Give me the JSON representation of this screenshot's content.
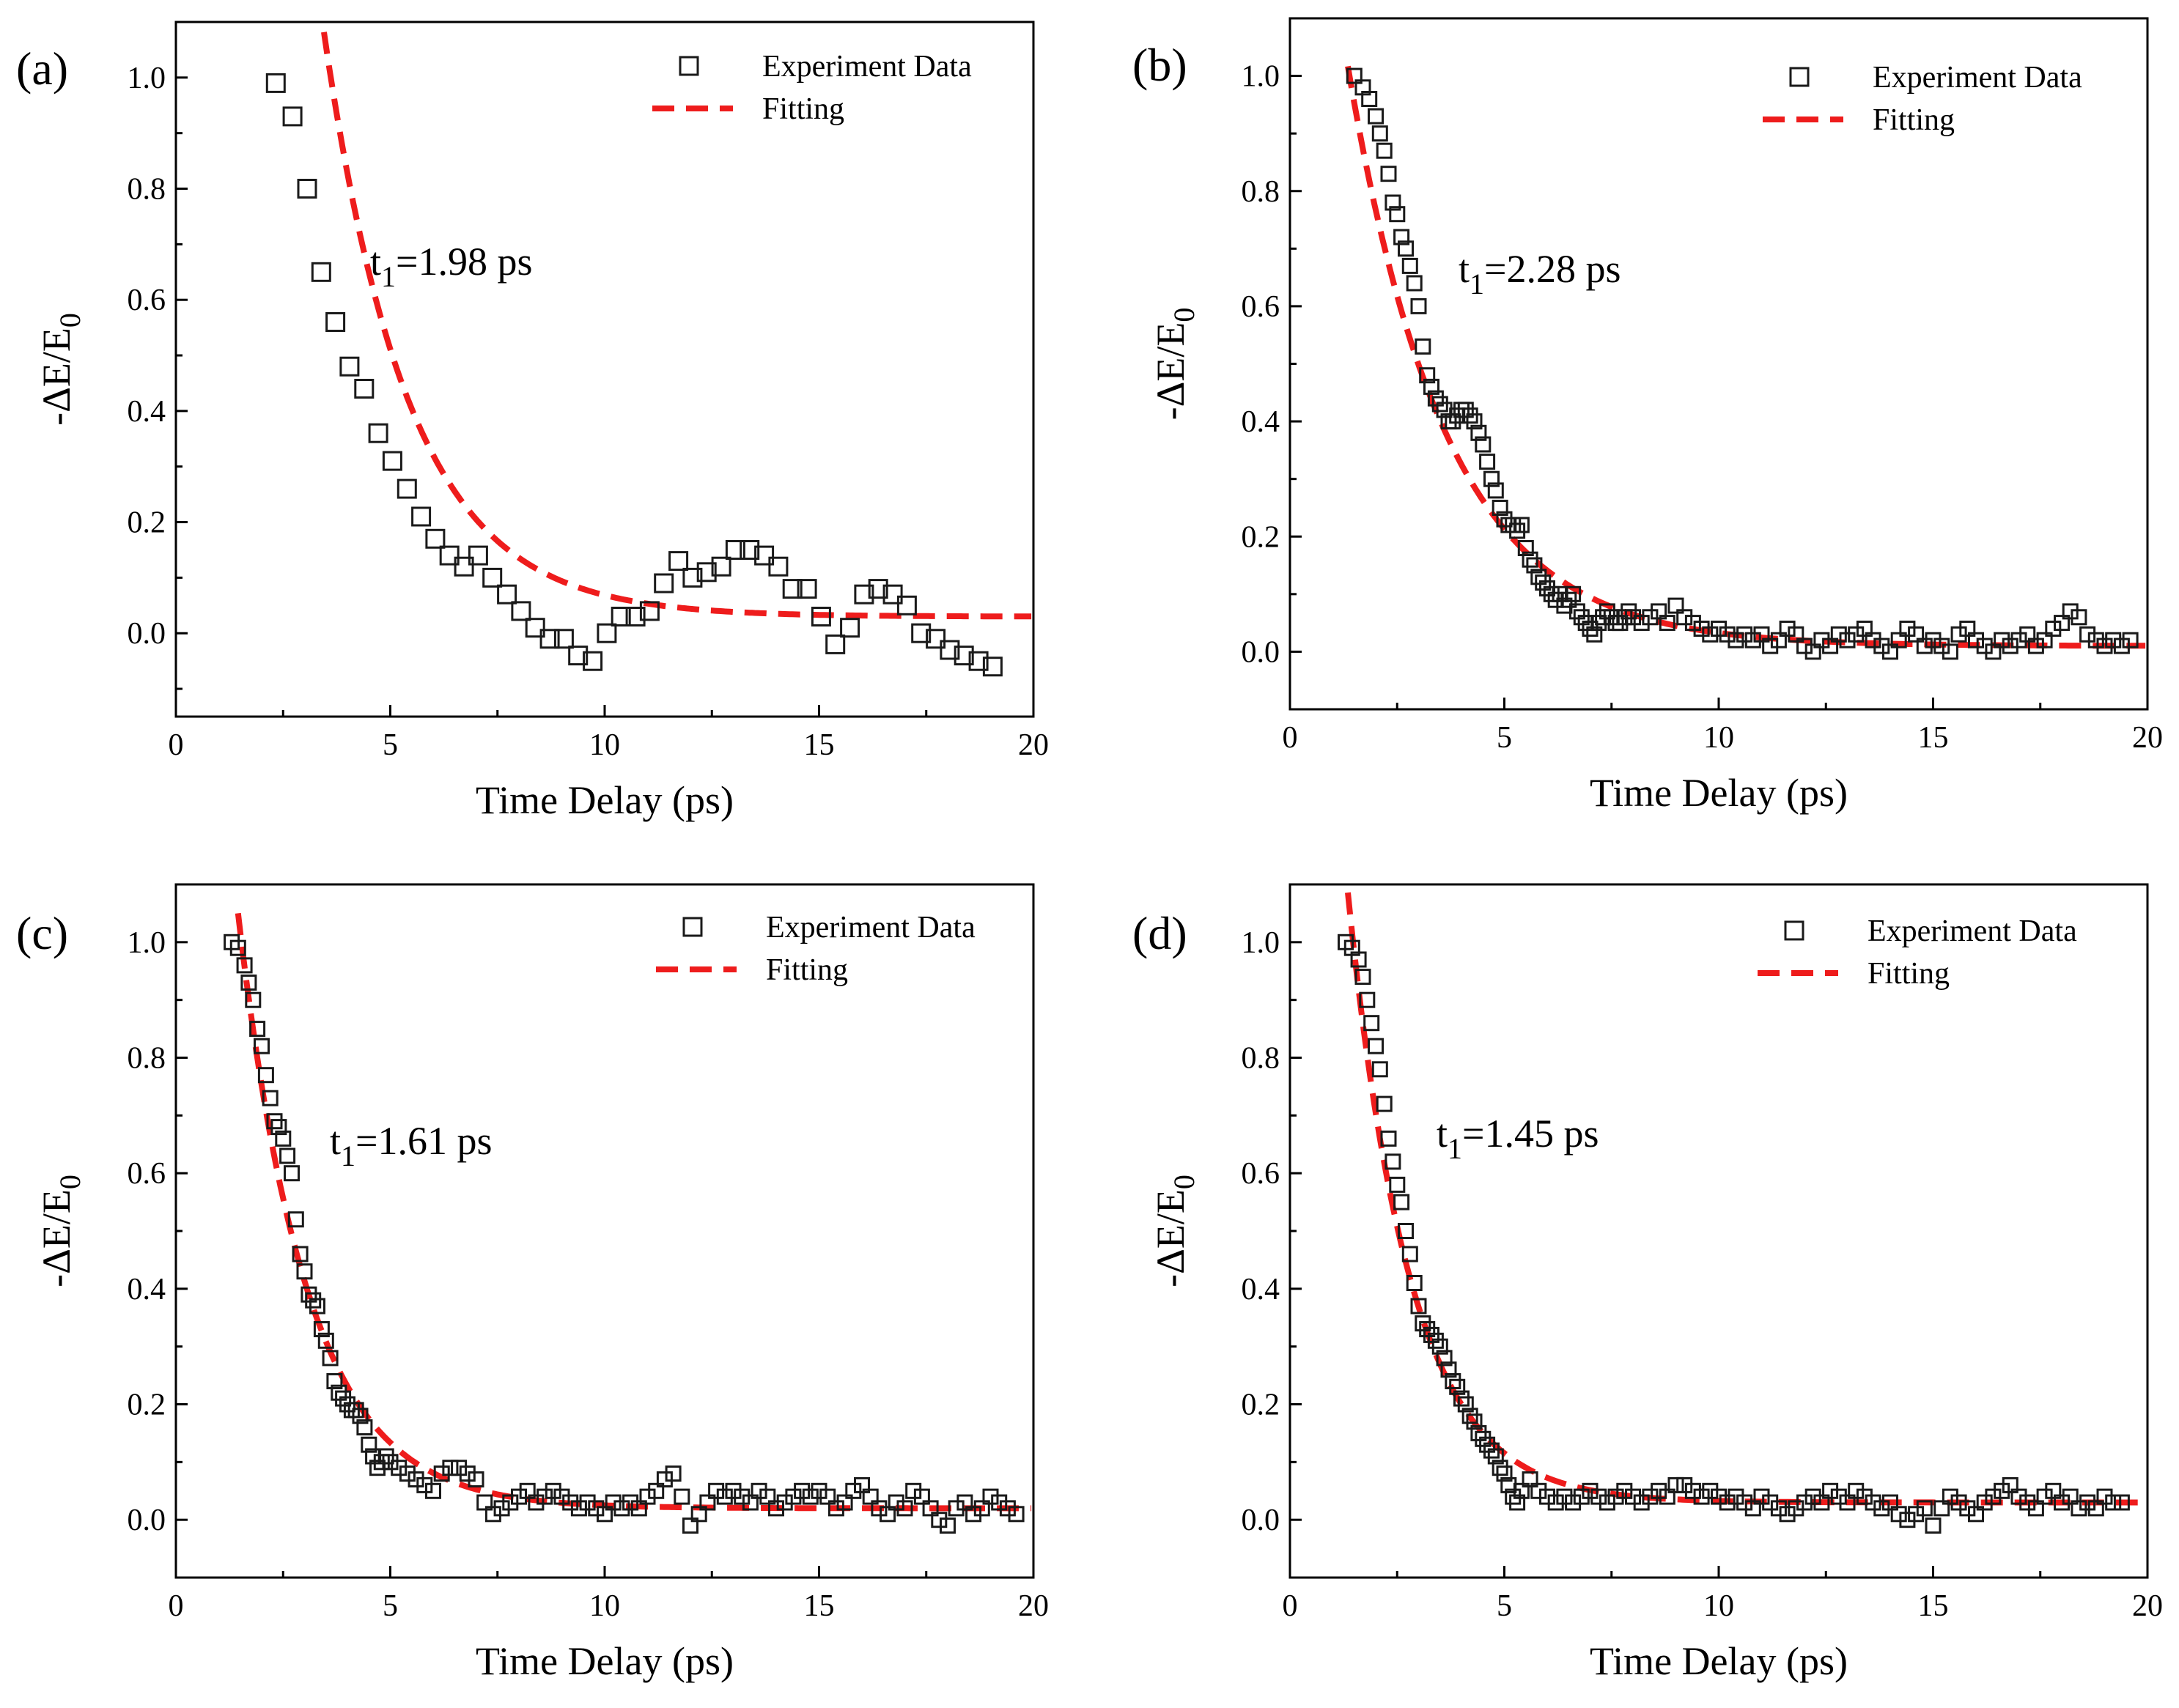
{
  "colors": {
    "marker": "#1a1a1a",
    "fit": "#ee1c1c",
    "axis": "#000000"
  },
  "chart_data": [
    {
      "panel": "(a)",
      "type": "scatter",
      "xlabel": "Time Delay (ps)",
      "ylabel": "-ΔE/E",
      "ylabel_sub": "0",
      "xlim": [
        0,
        20
      ],
      "ylim": [
        -0.15,
        1.1
      ],
      "xticks": [
        "0",
        "5",
        "10",
        "15",
        "20"
      ],
      "yticks": [
        "0.0",
        "0.2",
        "0.4",
        "0.6",
        "0.8",
        "1.0"
      ],
      "legend": {
        "data": "Experiment Data",
        "fit": "Fitting",
        "position": "top-right"
      },
      "annotation": {
        "main": "t",
        "sub": "1",
        "rest": "=1.98 ps"
      },
      "fit": {
        "A": 1.98,
        "tau": 1.98,
        "t0": 2.2,
        "C": 0.03,
        "start": 2.35
      },
      "series": [
        {
          "name": "Experiment Data",
          "x": [
            2.33,
            2.72,
            3.06,
            3.39,
            3.72,
            4.05,
            4.39,
            4.72,
            5.05,
            5.39,
            5.72,
            6.05,
            6.38,
            6.72,
            7.05,
            7.38,
            7.72,
            8.05,
            8.38,
            8.72,
            9.05,
            9.38,
            9.72,
            10.05,
            10.38,
            10.72,
            11.05,
            11.38,
            11.72,
            12.05,
            12.38,
            12.72,
            13.05,
            13.38,
            13.72,
            14.05,
            14.38,
            14.72,
            15.05,
            15.38,
            15.72,
            16.05,
            16.38,
            16.72,
            17.05,
            17.38,
            17.72,
            18.05,
            18.38,
            18.72,
            19.05
          ],
          "y": [
            0.99,
            0.93,
            0.8,
            0.65,
            0.56,
            0.48,
            0.44,
            0.36,
            0.31,
            0.26,
            0.21,
            0.17,
            0.14,
            0.12,
            0.14,
            0.1,
            0.07,
            0.04,
            0.01,
            -0.01,
            -0.01,
            -0.04,
            -0.05,
            0.0,
            0.03,
            0.03,
            0.04,
            0.09,
            0.13,
            0.1,
            0.11,
            0.12,
            0.15,
            0.15,
            0.14,
            0.12,
            0.08,
            0.08,
            0.03,
            -0.02,
            0.01,
            0.07,
            0.08,
            0.07,
            0.05,
            0.0,
            -0.01,
            -0.03,
            -0.04,
            -0.05,
            -0.06
          ]
        }
      ]
    },
    {
      "panel": "(b)",
      "type": "scatter",
      "xlabel": "Time Delay (ps)",
      "ylabel": "-ΔE/E",
      "ylabel_sub": "0",
      "xlim": [
        0,
        20
      ],
      "ylim": [
        -0.1,
        1.1
      ],
      "xticks": [
        "0",
        "5",
        "10",
        "15",
        "20"
      ],
      "yticks": [
        "0.0",
        "0.2",
        "0.4",
        "0.6",
        "0.8",
        "1.0"
      ],
      "legend": {
        "data": "Experiment Data",
        "fit": "Fitting",
        "position": "top-right"
      },
      "annotation": {
        "main": "t",
        "sub": "1",
        "rest": "=2.28 ps"
      },
      "fit": {
        "A": 0.985,
        "tau": 2.28,
        "t0": 1.4,
        "C": 0.01,
        "start": 1.35
      },
      "noise": [
        0.0,
        0.03
      ],
      "series": [
        {
          "name": "Experiment Data",
          "x": [
            1.5,
            1.7,
            1.85,
            2.0,
            2.1,
            2.2,
            2.3,
            2.4,
            2.5,
            2.6,
            2.7,
            2.8,
            2.9,
            3.0,
            3.1,
            3.2,
            3.3,
            3.4,
            3.5,
            3.6,
            3.7,
            3.8,
            3.9,
            4.0,
            4.1,
            4.2,
            4.3,
            4.4,
            4.5,
            4.6,
            4.7,
            4.8,
            4.9,
            5.0,
            5.1,
            5.2,
            5.3,
            5.4,
            5.5,
            5.6,
            5.7,
            5.8,
            5.9,
            6.0,
            6.1,
            6.2,
            6.3,
            6.4,
            6.5,
            6.6,
            6.7,
            6.8,
            6.9,
            7.0,
            7.1,
            7.2,
            7.3,
            7.4,
            7.5,
            7.6,
            7.7,
            7.8,
            7.9,
            8.0,
            8.2,
            8.4,
            8.6,
            8.8,
            9.0,
            9.2,
            9.4,
            9.6,
            9.8,
            10.0,
            10.2,
            10.4,
            10.6,
            10.8,
            11.0,
            11.2,
            11.4,
            11.6,
            11.8,
            12.0,
            12.2,
            12.4,
            12.6,
            12.8,
            13.0,
            13.2,
            13.4,
            13.6,
            13.8,
            14.0,
            14.2,
            14.4,
            14.6,
            14.8,
            15.0,
            15.2,
            15.4,
            15.6,
            15.8,
            16.0,
            16.2,
            16.4,
            16.6,
            16.8,
            17.0,
            17.2,
            17.4,
            17.6,
            17.8,
            18.0,
            18.2,
            18.4,
            18.6,
            18.8,
            19.0,
            19.2,
            19.4,
            19.6
          ],
          "y": [
            1.0,
            0.98,
            0.96,
            0.93,
            0.9,
            0.87,
            0.83,
            0.78,
            0.76,
            0.72,
            0.7,
            0.67,
            0.64,
            0.6,
            0.53,
            0.48,
            0.46,
            0.44,
            0.43,
            0.42,
            0.4,
            0.4,
            0.41,
            0.42,
            0.42,
            0.41,
            0.4,
            0.38,
            0.36,
            0.33,
            0.3,
            0.28,
            0.25,
            0.23,
            0.22,
            0.22,
            0.21,
            0.22,
            0.18,
            0.16,
            0.15,
            0.13,
            0.12,
            0.11,
            0.1,
            0.09,
            0.1,
            0.08,
            0.09,
            0.1,
            0.07,
            0.06,
            0.05,
            0.04,
            0.03,
            0.05,
            0.06,
            0.07,
            0.06,
            0.05,
            0.05,
            0.06,
            0.07,
            0.06,
            0.05,
            0.06,
            0.07,
            0.05,
            0.08,
            0.06,
            0.05,
            0.04,
            0.03,
            0.04,
            0.03,
            0.02,
            0.03,
            0.02,
            0.03,
            0.01,
            0.02,
            0.04,
            0.03,
            0.01,
            0.0,
            0.02,
            0.01,
            0.03,
            0.02,
            0.03,
            0.04,
            0.02,
            0.01,
            0.0,
            0.02,
            0.04,
            0.03,
            0.01,
            0.02,
            0.01,
            0.0,
            0.03,
            0.04,
            0.02,
            0.01,
            0.0,
            0.02,
            0.01,
            0.02,
            0.03,
            0.01,
            0.02,
            0.04,
            0.05,
            0.07,
            0.06,
            0.03,
            0.02,
            0.01,
            0.02,
            0.01,
            0.02
          ]
        }
      ]
    },
    {
      "panel": "(c)",
      "type": "scatter",
      "xlabel": "Time Delay (ps)",
      "ylabel": "-ΔE/E",
      "ylabel_sub": "0",
      "xlim": [
        0,
        20
      ],
      "ylim": [
        -0.1,
        1.1
      ],
      "xticks": [
        "0",
        "5",
        "10",
        "15",
        "20"
      ],
      "yticks": [
        "0.0",
        "0.2",
        "0.4",
        "0.6",
        "0.8",
        "1.0"
      ],
      "legend": {
        "data": "Experiment Data",
        "fit": "Fitting",
        "position": "top-right"
      },
      "annotation": {
        "main": "t",
        "sub": "1",
        "rest": "=1.61 ps"
      },
      "fit": {
        "A": 1.03,
        "tau": 1.61,
        "t0": 1.45,
        "C": 0.02,
        "start": 1.45
      },
      "series": [
        {
          "name": "Experiment Data",
          "x": [
            1.3,
            1.45,
            1.6,
            1.7,
            1.8,
            1.9,
            2.0,
            2.1,
            2.2,
            2.3,
            2.4,
            2.5,
            2.6,
            2.7,
            2.8,
            2.9,
            3.0,
            3.1,
            3.2,
            3.3,
            3.4,
            3.5,
            3.6,
            3.7,
            3.8,
            3.9,
            4.0,
            4.1,
            4.2,
            4.3,
            4.4,
            4.5,
            4.6,
            4.7,
            4.8,
            4.9,
            5.0,
            5.2,
            5.4,
            5.6,
            5.8,
            6.0,
            6.2,
            6.4,
            6.6,
            6.8,
            7.0,
            7.2,
            7.4,
            7.6,
            7.8,
            8.0,
            8.2,
            8.4,
            8.6,
            8.8,
            9.0,
            9.2,
            9.4,
            9.6,
            9.8,
            10.0,
            10.2,
            10.4,
            10.6,
            10.8,
            11.0,
            11.2,
            11.4,
            11.6,
            11.8,
            12.0,
            12.2,
            12.4,
            12.6,
            12.8,
            13.0,
            13.2,
            13.4,
            13.6,
            13.8,
            14.0,
            14.2,
            14.4,
            14.6,
            14.8,
            15.0,
            15.2,
            15.4,
            15.6,
            15.8,
            16.0,
            16.2,
            16.4,
            16.6,
            16.8,
            17.0,
            17.2,
            17.4,
            17.6,
            17.8,
            18.0,
            18.2,
            18.4,
            18.6,
            18.8,
            19.0,
            19.2,
            19.4,
            19.6
          ],
          "y": [
            1.0,
            0.99,
            0.96,
            0.93,
            0.9,
            0.85,
            0.82,
            0.77,
            0.73,
            0.69,
            0.68,
            0.66,
            0.63,
            0.6,
            0.52,
            0.46,
            0.43,
            0.39,
            0.38,
            0.37,
            0.33,
            0.31,
            0.28,
            0.24,
            0.22,
            0.21,
            0.2,
            0.19,
            0.19,
            0.18,
            0.16,
            0.13,
            0.11,
            0.09,
            0.1,
            0.11,
            0.1,
            0.09,
            0.08,
            0.07,
            0.06,
            0.05,
            0.08,
            0.09,
            0.09,
            0.08,
            0.07,
            0.03,
            0.01,
            0.02,
            0.03,
            0.04,
            0.05,
            0.03,
            0.04,
            0.05,
            0.04,
            0.03,
            0.02,
            0.03,
            0.02,
            0.01,
            0.03,
            0.02,
            0.03,
            0.02,
            0.04,
            0.05,
            0.07,
            0.08,
            0.04,
            -0.01,
            0.01,
            0.03,
            0.05,
            0.04,
            0.05,
            0.04,
            0.03,
            0.05,
            0.04,
            0.02,
            0.03,
            0.04,
            0.05,
            0.04,
            0.05,
            0.04,
            0.02,
            0.03,
            0.05,
            0.06,
            0.04,
            0.02,
            0.01,
            0.03,
            0.02,
            0.05,
            0.04,
            0.02,
            0.0,
            -0.01,
            0.02,
            0.03,
            0.01,
            0.02,
            0.04,
            0.03,
            0.02,
            0.01
          ]
        }
      ]
    },
    {
      "panel": "(d)",
      "type": "scatter",
      "xlabel": "Time Delay (ps)",
      "ylabel": "-ΔE/E",
      "ylabel_sub": "0",
      "xlim": [
        0,
        20
      ],
      "ylim": [
        -0.1,
        1.1
      ],
      "xticks": [
        "0",
        "5",
        "10",
        "15",
        "20"
      ],
      "yticks": [
        "0.0",
        "0.2",
        "0.4",
        "0.6",
        "0.8",
        "1.0"
      ],
      "legend": {
        "data": "Experiment Data",
        "fit": "Fitting",
        "position": "top-right"
      },
      "annotation": {
        "main": "t",
        "sub": "1",
        "rest": "=1.45 ps"
      },
      "fit": {
        "A": 1.02,
        "tau": 1.45,
        "t0": 1.4,
        "C": 0.03,
        "start": 1.35
      },
      "series": [
        {
          "name": "Experiment Data",
          "x": [
            1.3,
            1.45,
            1.6,
            1.7,
            1.8,
            1.9,
            2.0,
            2.1,
            2.2,
            2.3,
            2.4,
            2.5,
            2.6,
            2.7,
            2.8,
            2.9,
            3.0,
            3.1,
            3.2,
            3.3,
            3.4,
            3.5,
            3.6,
            3.7,
            3.8,
            3.9,
            4.0,
            4.1,
            4.2,
            4.3,
            4.4,
            4.5,
            4.6,
            4.7,
            4.8,
            4.9,
            5.0,
            5.1,
            5.2,
            5.3,
            5.4,
            5.6,
            5.8,
            6.0,
            6.2,
            6.4,
            6.6,
            6.8,
            7.0,
            7.2,
            7.4,
            7.6,
            7.8,
            8.0,
            8.2,
            8.4,
            8.6,
            8.8,
            9.0,
            9.2,
            9.4,
            9.6,
            9.8,
            10.0,
            10.2,
            10.4,
            10.6,
            10.8,
            11.0,
            11.2,
            11.4,
            11.6,
            11.8,
            12.0,
            12.2,
            12.4,
            12.6,
            12.8,
            13.0,
            13.2,
            13.4,
            13.6,
            13.8,
            14.0,
            14.2,
            14.4,
            14.6,
            14.8,
            15.0,
            15.2,
            15.4,
            15.6,
            15.8,
            16.0,
            16.2,
            16.4,
            16.6,
            16.8,
            17.0,
            17.2,
            17.4,
            17.6,
            17.8,
            18.0,
            18.2,
            18.4,
            18.6,
            18.8,
            19.0,
            19.2,
            19.4
          ],
          "y": [
            1.0,
            0.99,
            0.97,
            0.94,
            0.9,
            0.86,
            0.82,
            0.78,
            0.72,
            0.66,
            0.62,
            0.58,
            0.55,
            0.5,
            0.46,
            0.41,
            0.37,
            0.34,
            0.33,
            0.32,
            0.31,
            0.3,
            0.28,
            0.26,
            0.24,
            0.23,
            0.21,
            0.2,
            0.18,
            0.17,
            0.15,
            0.14,
            0.13,
            0.12,
            0.11,
            0.09,
            0.08,
            0.06,
            0.04,
            0.03,
            0.05,
            0.07,
            0.05,
            0.04,
            0.03,
            0.04,
            0.03,
            0.04,
            0.05,
            0.04,
            0.03,
            0.04,
            0.05,
            0.04,
            0.03,
            0.04,
            0.05,
            0.04,
            0.06,
            0.06,
            0.05,
            0.04,
            0.05,
            0.04,
            0.03,
            0.04,
            0.03,
            0.02,
            0.04,
            0.03,
            0.02,
            0.01,
            0.02,
            0.03,
            0.04,
            0.03,
            0.05,
            0.04,
            0.03,
            0.05,
            0.04,
            0.03,
            0.02,
            0.03,
            0.01,
            0.0,
            0.01,
            0.02,
            -0.01,
            0.02,
            0.04,
            0.03,
            0.02,
            0.01,
            0.03,
            0.04,
            0.05,
            0.06,
            0.04,
            0.03,
            0.02,
            0.04,
            0.05,
            0.03,
            0.04,
            0.02,
            0.03,
            0.02,
            0.04,
            0.03,
            0.03
          ]
        }
      ]
    }
  ]
}
